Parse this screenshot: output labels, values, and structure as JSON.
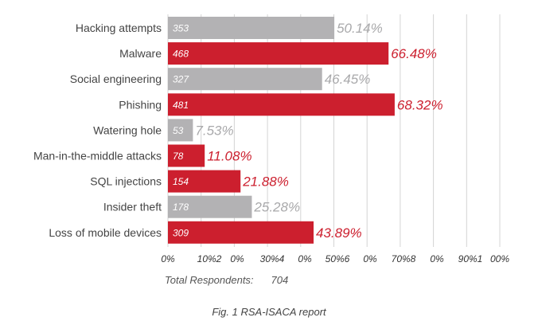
{
  "chart_data": {
    "type": "bar",
    "orientation": "horizontal",
    "categories": [
      "Hacking attempts",
      "Malware",
      "Social engineering",
      "Phishing",
      "Watering hole",
      "Man-in-the-middle attacks",
      "SQL injections",
      "Insider theft",
      "Loss of mobile devices"
    ],
    "values": [
      353,
      468,
      327,
      481,
      53,
      78,
      154,
      178,
      309
    ],
    "percent_labels": [
      "50.14%",
      "66.48%",
      "46.45%",
      "68.32%",
      "7.53%",
      "11.08%",
      "21.88%",
      "25.28%",
      "43.89%"
    ],
    "bar_colors": [
      "#b3b2b4",
      "#cc1f2e",
      "#b3b2b4",
      "#cc1f2e",
      "#b3b2b4",
      "#cc1f2e",
      "#cc1f2e",
      "#b3b2b4",
      "#cc1f2e"
    ],
    "label_colors": [
      "#a9a9ab",
      "#cc1f2e",
      "#a9a9ab",
      "#cc1f2e",
      "#a9a9ab",
      "#cc1f2e",
      "#cc1f2e",
      "#a9a9ab",
      "#cc1f2e"
    ],
    "x_tick_labels": [
      "0%",
      "10%2",
      "0%",
      "30%4",
      "0%",
      "50%6",
      "0%",
      "70%8",
      "0%",
      "90%1",
      "00%"
    ],
    "xlim": [
      0,
      704
    ],
    "grid": true,
    "total_label": "Total Respondents:",
    "total_value": "704",
    "caption": "Fig. 1 RSA-ISACA report"
  }
}
